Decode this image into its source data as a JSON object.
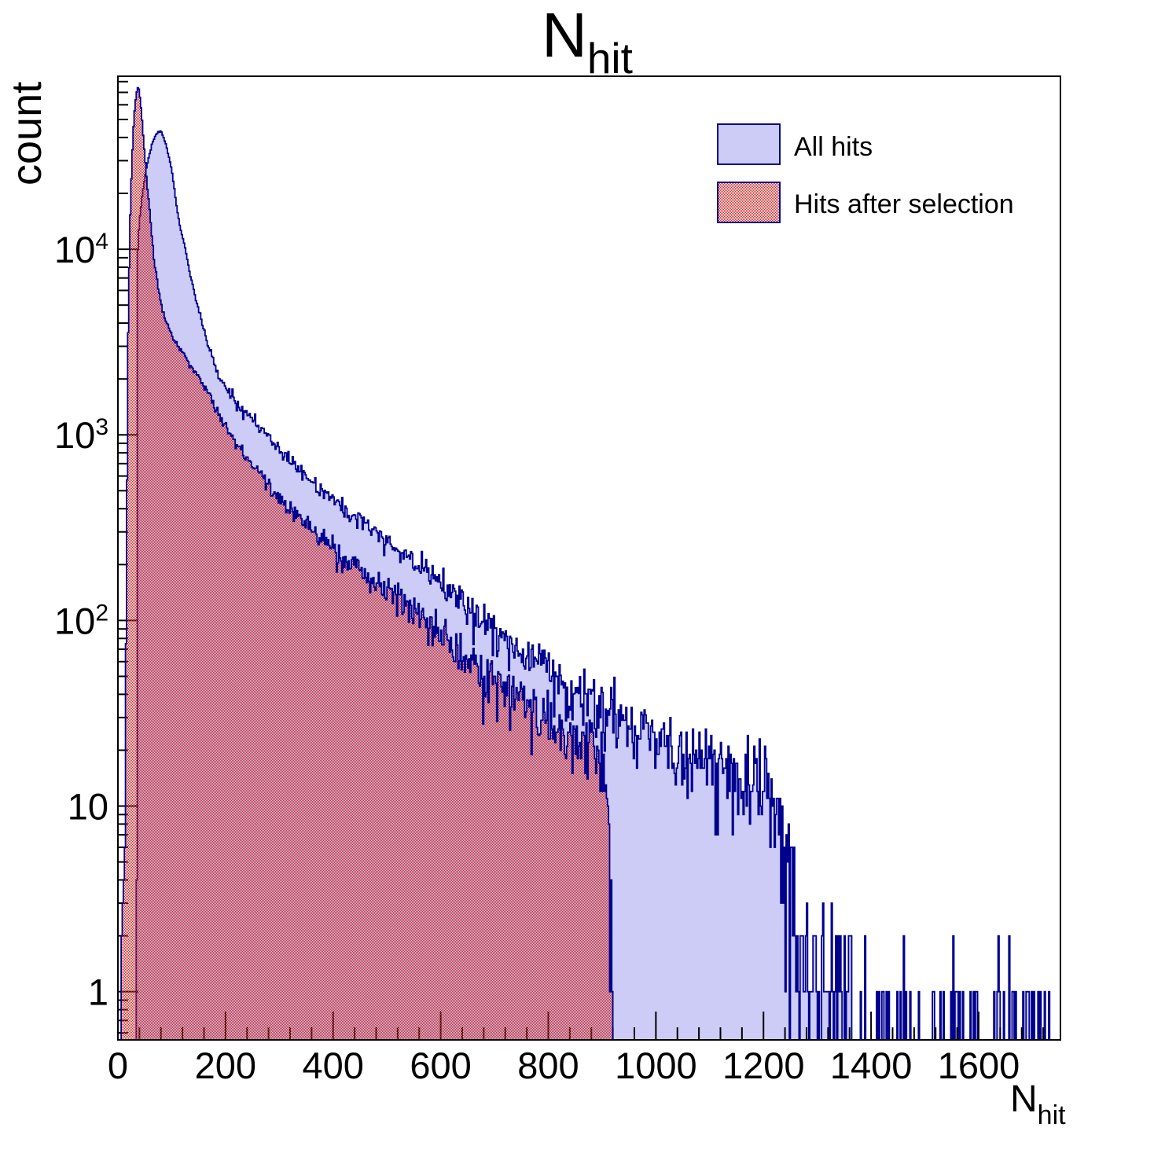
{
  "title": {
    "main": "N",
    "sub": "hit"
  },
  "y_axis": {
    "label": "count"
  },
  "x_axis": {
    "label_main": "N",
    "label_sub": "hit"
  },
  "legend": {
    "items": [
      {
        "label": "All hits",
        "swatch": "solid"
      },
      {
        "label": "Hits after selection",
        "swatch": "checker"
      }
    ]
  },
  "colors": {
    "frame": "#000000",
    "navy_line": "#00008f",
    "lavender_fill": "#ccccf7",
    "checker_red": "#cc2828",
    "text": "#000000"
  },
  "chart_data": {
    "type": "histogram_overlay",
    "title": "N_hit",
    "xlabel": "N_hit",
    "ylabel": "count",
    "y_scale": "log",
    "x_range": [
      0,
      1752
    ],
    "y_range": [
      0.55,
      85500
    ],
    "bin_width": 2,
    "x_major_ticks": [
      0,
      200,
      400,
      600,
      800,
      1000,
      1200,
      1400,
      1600
    ],
    "x_minor_step": 40,
    "y_ticks": [
      {
        "v": 1,
        "base": "1",
        "exp": ""
      },
      {
        "v": 10,
        "base": "10",
        "exp": ""
      },
      {
        "v": 100,
        "base": "10",
        "exp": "2"
      },
      {
        "v": 1000,
        "base": "10",
        "exp": "3"
      },
      {
        "v": 10000,
        "base": "10",
        "exp": "4"
      }
    ],
    "legend_position": "top-right",
    "grid": false,
    "series": [
      {
        "name": "All hits",
        "style": "solid",
        "noise_seed": 20240,
        "envelope": {
          "x": [
            34,
            36,
            37,
            40,
            45,
            52,
            60,
            68,
            80,
            90,
            100,
            112,
            125,
            136,
            146,
            165,
            190,
            220,
            259,
            300,
            336,
            380,
            420,
            460,
            500,
            540,
            580,
            628,
            680,
            730,
            780,
            830,
            880,
            930,
            980,
            1030,
            1080,
            1130,
            1175,
            1205,
            1228,
            1245,
            1270,
            1300,
            1340,
            1390,
            1440,
            1500,
            1580,
            1660,
            1750
          ],
          "c": [
            0.3,
            40,
            10000,
            14000,
            19500,
            26500,
            34000,
            40500,
            43800,
            36000,
            27000,
            15000,
            10000,
            7000,
            5200,
            3200,
            2000,
            1480,
            1150,
            830,
            650,
            500,
            400,
            330,
            270,
            220,
            180,
            135,
            100,
            75,
            58,
            46,
            37,
            30,
            25,
            21,
            18,
            16,
            14.5,
            12,
            8,
            3.5,
            1.8,
            1.1,
            0.8,
            0.6,
            0.45,
            0.35,
            0.28,
            0.22,
            0.18
          ]
        }
      },
      {
        "name": "Hits after selection",
        "style": "checker",
        "noise_seed": 909,
        "envelope": {
          "x": [
            7,
            9,
            11,
            13,
            15,
            17,
            19,
            22,
            26,
            30,
            34,
            38,
            42,
            46,
            50,
            54,
            58,
            63,
            67,
            75,
            85,
            100,
            115,
            130,
            146,
            165,
            190,
            220,
            259,
            300,
            336,
            380,
            420,
            460,
            500,
            540,
            580,
            628,
            680,
            730,
            780,
            830,
            880,
            900,
            908,
            914,
            918,
            920
          ],
          "c": [
            0.4,
            1.5,
            4,
            10,
            60,
            600,
            3500,
            12000,
            30000,
            52000,
            68000,
            76000,
            63000,
            45000,
            32000,
            23000,
            17500,
            12000,
            8800,
            6100,
            4400,
            3400,
            2900,
            2500,
            2150,
            1750,
            1250,
            900,
            640,
            460,
            360,
            275,
            218,
            178,
            146,
            119,
            97,
            73,
            54,
            41,
            31,
            25,
            20,
            17,
            12,
            6,
            2.5,
            1
          ]
        }
      }
    ]
  }
}
